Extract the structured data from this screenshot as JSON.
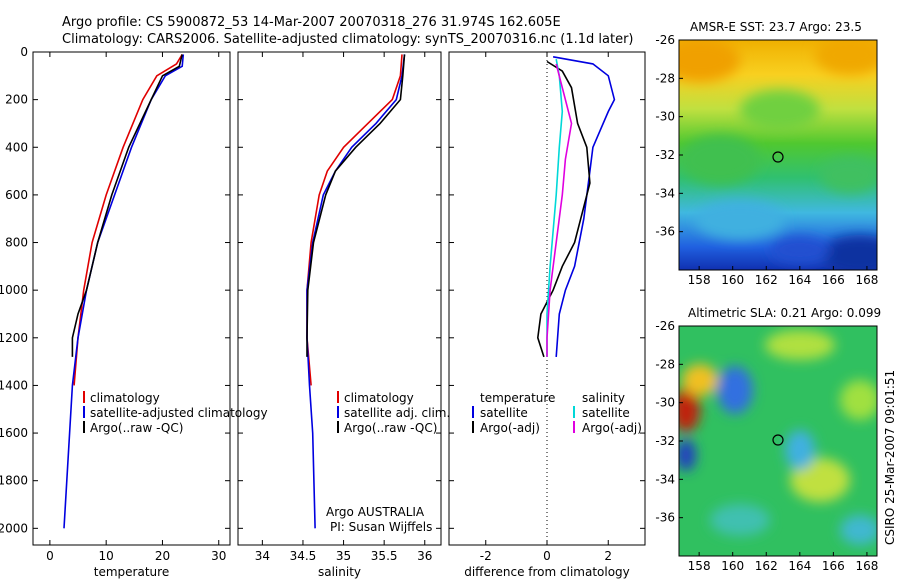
{
  "header": {
    "line1": "Argo profile: CS 5900872_53 14-Mar-2007 20070318_276 31.974S 162.605E",
    "line2": "Climatology: CARS2006. Satellite-adjusted climatology: synTS_20070316.nc (1.1d later)"
  },
  "side_note": "CSIRO 25-Mar-2007 09:01:51",
  "chart_data": [
    {
      "type": "line",
      "xlabel": "temperature",
      "xlim": [
        -3,
        32
      ],
      "xticks": [
        0,
        10,
        20,
        30
      ],
      "ylim": [
        0,
        2070
      ],
      "yticks": [
        0,
        200,
        400,
        600,
        800,
        1000,
        1200,
        1400,
        1600,
        1800,
        2000
      ],
      "legend": [
        "climatology",
        "satellite-adjusted climatology",
        "Argo(..raw -QC)"
      ],
      "series": [
        {
          "name": "climatology",
          "color": "#e00000",
          "points": [
            [
              23.5,
              10
            ],
            [
              22.5,
              50
            ],
            [
              19,
              100
            ],
            [
              16.5,
              200
            ],
            [
              13,
              400
            ],
            [
              10,
              600
            ],
            [
              7.5,
              800
            ],
            [
              6,
              1000
            ],
            [
              5,
              1200
            ],
            [
              4.3,
              1400
            ]
          ]
        },
        {
          "name": "satellite-adjusted climatology",
          "color": "#0000e0",
          "points": [
            [
              23.7,
              10
            ],
            [
              23.5,
              60
            ],
            [
              20.5,
              100
            ],
            [
              18,
              200
            ],
            [
              14.5,
              400
            ],
            [
              11.5,
              600
            ],
            [
              8.5,
              800
            ],
            [
              6.5,
              1000
            ],
            [
              5,
              1200
            ],
            [
              4,
              1400
            ],
            [
              3.5,
              1600
            ],
            [
              3,
              1800
            ],
            [
              2.5,
              2000
            ]
          ]
        },
        {
          "name": "Argo(..raw -QC)",
          "color": "#000000",
          "points": [
            [
              23.5,
              10
            ],
            [
              23,
              60
            ],
            [
              20,
              100
            ],
            [
              18,
              200
            ],
            [
              14,
              400
            ],
            [
              11,
              600
            ],
            [
              8.5,
              800
            ],
            [
              6.5,
              1000
            ],
            [
              5,
              1100
            ],
            [
              4,
              1200
            ],
            [
              4,
              1280
            ]
          ]
        }
      ]
    },
    {
      "type": "line",
      "xlabel": "salinity",
      "xlim": [
        33.7,
        36.2
      ],
      "xticks": [
        34,
        34.5,
        35,
        35.5,
        36
      ],
      "ylim": [
        0,
        2070
      ],
      "legend": [
        "climatology",
        "satellite adj. clim.",
        "Argo(..raw -QC)"
      ],
      "annotation": [
        "Argo AUSTRALIA",
        "PI: Susan Wijffels"
      ],
      "series": [
        {
          "name": "climatology",
          "color": "#e00000",
          "points": [
            [
              35.72,
              10
            ],
            [
              35.7,
              100
            ],
            [
              35.6,
              200
            ],
            [
              35.3,
              300
            ],
            [
              35.0,
              400
            ],
            [
              34.8,
              500
            ],
            [
              34.7,
              600
            ],
            [
              34.6,
              800
            ],
            [
              34.55,
              1000
            ],
            [
              34.55,
              1200
            ],
            [
              34.6,
              1400
            ]
          ]
        },
        {
          "name": "satellite adj. clim.",
          "color": "#0000e0",
          "points": [
            [
              35.75,
              10
            ],
            [
              35.72,
              100
            ],
            [
              35.65,
              200
            ],
            [
              35.4,
              300
            ],
            [
              35.1,
              400
            ],
            [
              34.9,
              500
            ],
            [
              34.75,
              600
            ],
            [
              34.62,
              800
            ],
            [
              34.55,
              1000
            ],
            [
              34.55,
              1200
            ],
            [
              34.58,
              1400
            ],
            [
              34.62,
              1600
            ],
            [
              34.65,
              2000
            ]
          ]
        },
        {
          "name": "Argo(..raw -QC)",
          "color": "#000000",
          "points": [
            [
              35.75,
              10
            ],
            [
              35.73,
              100
            ],
            [
              35.7,
              200
            ],
            [
              35.45,
              300
            ],
            [
              35.15,
              400
            ],
            [
              34.9,
              500
            ],
            [
              34.78,
              600
            ],
            [
              34.63,
              800
            ],
            [
              34.56,
              1000
            ],
            [
              34.55,
              1200
            ],
            [
              34.55,
              1280
            ]
          ]
        }
      ]
    },
    {
      "type": "line",
      "xlabel": "difference from climatology",
      "xlim": [
        -3.2,
        3.2
      ],
      "xticks": [
        -2,
        0,
        2
      ],
      "ylim": [
        0,
        2070
      ],
      "zero_line": true,
      "legend_groups": [
        {
          "header": "temperature",
          "items": [
            "satellite",
            "Argo(-adj)"
          ]
        },
        {
          "header": "salinity",
          "items": [
            "satellite",
            "Argo(-adj)"
          ]
        }
      ],
      "series": [
        {
          "name": "temperature satellite",
          "color": "#0000e0",
          "points": [
            [
              0.2,
              20
            ],
            [
              1.5,
              50
            ],
            [
              2,
              100
            ],
            [
              2.2,
              200
            ],
            [
              2,
              250
            ],
            [
              1.5,
              400
            ],
            [
              1.4,
              500
            ],
            [
              1.2,
              700
            ],
            [
              0.9,
              900
            ],
            [
              0.6,
              1000
            ],
            [
              0.4,
              1100
            ],
            [
              0.3,
              1280
            ]
          ]
        },
        {
          "name": "temperature Argo(-adj)",
          "color": "#000000",
          "points": [
            [
              0,
              40
            ],
            [
              0.5,
              80
            ],
            [
              0.8,
              150
            ],
            [
              1.0,
              300
            ],
            [
              1.3,
              400
            ],
            [
              1.4,
              550
            ],
            [
              1.2,
              650
            ],
            [
              0.9,
              800
            ],
            [
              0.5,
              900
            ],
            [
              0.2,
              1000
            ],
            [
              -0.2,
              1100
            ],
            [
              -0.3,
              1200
            ],
            [
              -0.1,
              1280
            ]
          ]
        },
        {
          "name": "salinity satellite",
          "color": "#00d8d8",
          "points": [
            [
              0.3,
              30
            ],
            [
              0.4,
              100
            ],
            [
              0.5,
              250
            ],
            [
              0.4,
              400
            ],
            [
              0.3,
              600
            ],
            [
              0.1,
              900
            ],
            [
              0,
              1100
            ],
            [
              0,
              1280
            ]
          ]
        },
        {
          "name": "salinity Argo(-adj)",
          "color": "#e000e0",
          "points": [
            [
              0.3,
              50
            ],
            [
              0.5,
              150
            ],
            [
              0.8,
              300
            ],
            [
              0.6,
              450
            ],
            [
              0.5,
              600
            ],
            [
              0.3,
              800
            ],
            [
              0.1,
              1000
            ],
            [
              0,
              1200
            ],
            [
              0,
              1280
            ]
          ]
        }
      ]
    },
    {
      "type": "heatmap",
      "title": "AMSR-E SST: 23.7 Argo: 23.5",
      "xlim": [
        156.8,
        168.6
      ],
      "xticks": [
        158,
        160,
        162,
        164,
        166,
        168
      ],
      "ylim": [
        -38,
        -26
      ],
      "yticks": [
        -26,
        -28,
        -30,
        -32,
        -34,
        -36
      ],
      "marker": [
        162.6,
        -31.97
      ]
    },
    {
      "type": "heatmap",
      "title": "Altimetric SLA: 0.21 Argo: 0.099",
      "xlim": [
        156.8,
        168.6
      ],
      "xticks": [
        158,
        160,
        162,
        164,
        166,
        168
      ],
      "ylim": [
        -38,
        -26
      ],
      "yticks": [
        -26,
        -28,
        -30,
        -32,
        -34,
        -36
      ],
      "marker": [
        162.6,
        -31.97
      ]
    }
  ]
}
